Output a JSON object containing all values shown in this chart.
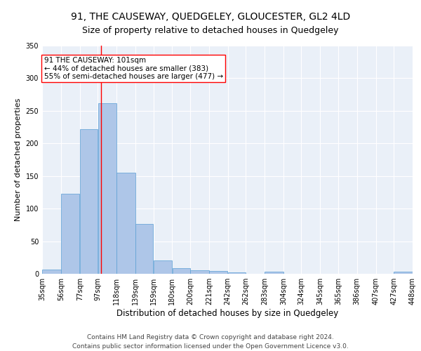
{
  "title": "91, THE CAUSEWAY, QUEDGELEY, GLOUCESTER, GL2 4LD",
  "subtitle": "Size of property relative to detached houses in Quedgeley",
  "xlabel": "Distribution of detached houses by size in Quedgeley",
  "ylabel": "Number of detached properties",
  "footer_line1": "Contains HM Land Registry data © Crown copyright and database right 2024.",
  "footer_line2": "Contains public sector information licensed under the Open Government Licence v3.0.",
  "annotation_line1": "91 THE CAUSEWAY: 101sqm",
  "annotation_line2": "← 44% of detached houses are smaller (383)",
  "annotation_line3": "55% of semi-detached houses are larger (477) →",
  "bar_edges": [
    35,
    56,
    77,
    97,
    118,
    139,
    159,
    180,
    200,
    221,
    242,
    262,
    283,
    304,
    324,
    345,
    365,
    386,
    407,
    427,
    448
  ],
  "bar_heights": [
    6,
    123,
    222,
    262,
    155,
    76,
    21,
    9,
    5,
    4,
    2,
    0,
    3,
    0,
    0,
    0,
    0,
    0,
    0,
    3
  ],
  "bar_color": "#aec6e8",
  "bar_edgecolor": "#5a9fd4",
  "red_line_x": 101,
  "ylim": [
    0,
    350
  ],
  "xlim": [
    35,
    448
  ],
  "background_color": "#eaf0f8",
  "grid_color": "#ffffff",
  "title_fontsize": 10,
  "subtitle_fontsize": 9,
  "xlabel_fontsize": 8.5,
  "ylabel_fontsize": 8,
  "tick_fontsize": 7,
  "footer_fontsize": 6.5,
  "annotation_fontsize": 7.5
}
